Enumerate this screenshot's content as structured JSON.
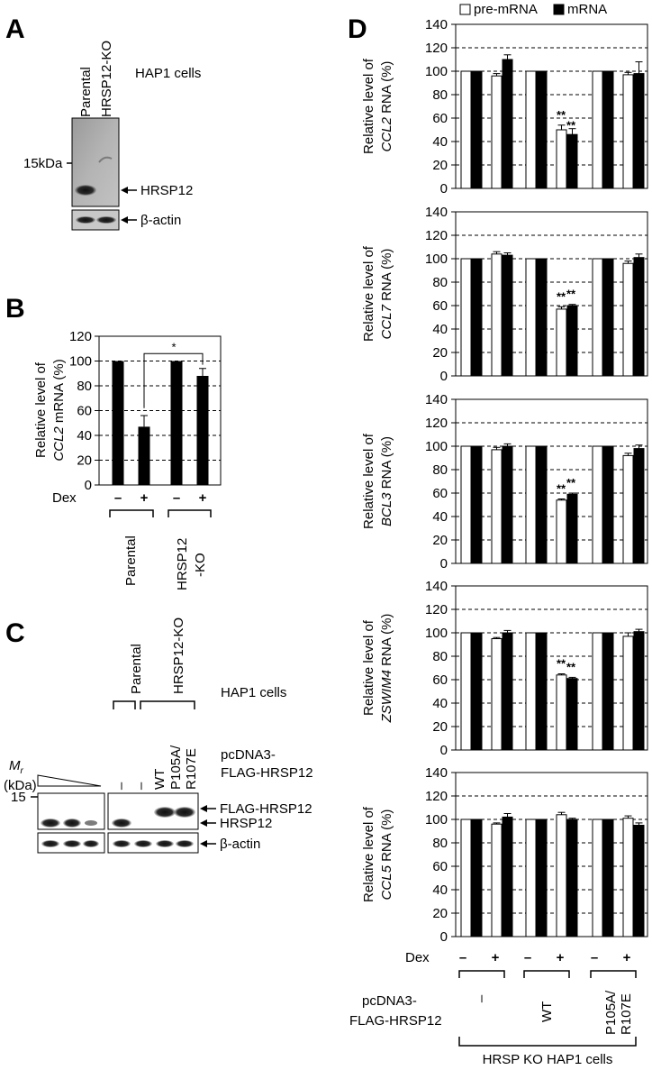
{
  "panels": {
    "a": "A",
    "b": "B",
    "c": "C",
    "d": "D"
  },
  "panel_a": {
    "cell_line": "HAP1 cells",
    "lanes": [
      "Parental",
      "HRSP12-KO"
    ],
    "marker": "15kDa",
    "bands": [
      "HRSP12",
      "β-actin"
    ]
  },
  "panel_c": {
    "cell_line": "HAP1 cells",
    "groups": [
      "Parental",
      "HRSP12-KO"
    ],
    "mr_label": "M",
    "mr_sub": "r",
    "mr_unit": "(kDa)",
    "mr_value": "15",
    "construct_line1": "pcDNA3-",
    "construct_line2": "FLAG-HRSP12",
    "lanes": [
      "–",
      "–",
      "WT",
      "P105A/\nR107E"
    ],
    "lane_dash": "–",
    "lane_wt": "WT",
    "lane_mut1": "P105A/",
    "lane_mut2": "R107E",
    "bands": [
      "FLAG-HRSP12",
      "HRSP12",
      "β-actin"
    ]
  },
  "panel_d_footer": {
    "dex_label": "Dex",
    "dex": [
      "–",
      "+",
      "–",
      "+",
      "–",
      "+"
    ],
    "construct_line1": "pcDNA3-",
    "construct_line2": "FLAG-HRSP12",
    "groups": [
      "–",
      "WT",
      "P105A/\nR107E"
    ],
    "group_dash": "–",
    "group_wt": "WT",
    "group_mut1": "P105A/",
    "group_mut2": "R107E",
    "cells": "HRSP KO HAP1 cells"
  },
  "chart_data": [
    {
      "type": "bar",
      "id": "B",
      "ylabel_line1": "Relative level of",
      "ylabel_gene": "CCL2",
      "ylabel_rest": " mRNA (%)",
      "yticks": [
        0,
        20,
        40,
        60,
        80,
        100,
        120
      ],
      "ylim": [
        0,
        120
      ],
      "grid": "dashed",
      "dex_label": "Dex",
      "dex": [
        "–",
        "+",
        "–",
        "+"
      ],
      "groups": [
        "Parental",
        "HRSP12\n-KO"
      ],
      "group_1": "Parental",
      "group_2a": "HRSP12",
      "group_2b": "-KO",
      "values": [
        100,
        47,
        100,
        88
      ],
      "errors": [
        0,
        9,
        0,
        6
      ],
      "significance": "*"
    },
    {
      "type": "bar",
      "id": "D1",
      "ylabel_line1": "Relative level of",
      "ylabel_gene": "CCL2",
      "ylabel_rest": " RNA (%)",
      "yticks": [
        0,
        20,
        40,
        60,
        80,
        100,
        120,
        140
      ],
      "ylim": [
        0,
        140
      ],
      "legend": [
        "pre-mRNA",
        "mRNA"
      ],
      "series": [
        {
          "name": "pre-mRNA",
          "values": [
            100,
            96,
            100,
            50,
            100,
            97
          ],
          "errors": [
            0,
            2,
            0,
            4,
            0,
            2
          ]
        },
        {
          "name": "mRNA",
          "values": [
            100,
            110,
            100,
            46,
            100,
            98
          ],
          "errors": [
            0,
            4,
            0,
            5,
            0,
            10
          ]
        }
      ],
      "stars": "**"
    },
    {
      "type": "bar",
      "id": "D2",
      "ylabel_line1": "Relative level of",
      "ylabel_gene": "CCL7",
      "ylabel_rest": " RNA (%)",
      "yticks": [
        0,
        20,
        40,
        60,
        80,
        100,
        120,
        140
      ],
      "ylim": [
        0,
        140
      ],
      "series": [
        {
          "name": "pre-mRNA",
          "values": [
            100,
            104,
            100,
            57,
            100,
            96
          ],
          "errors": [
            0,
            2,
            0,
            2,
            0,
            2
          ]
        },
        {
          "name": "mRNA",
          "values": [
            100,
            103,
            100,
            60,
            100,
            101
          ],
          "errors": [
            0,
            2,
            0,
            1,
            0,
            3
          ]
        }
      ],
      "stars": "**"
    },
    {
      "type": "bar",
      "id": "D3",
      "ylabel_line1": "Relative level of",
      "ylabel_gene": "BCL3",
      "ylabel_rest": " RNA (%)",
      "yticks": [
        0,
        20,
        40,
        60,
        80,
        100,
        120,
        140
      ],
      "ylim": [
        0,
        140
      ],
      "series": [
        {
          "name": "pre-mRNA",
          "values": [
            100,
            97,
            100,
            54,
            100,
            92
          ],
          "errors": [
            0,
            2,
            0,
            1,
            0,
            2
          ]
        },
        {
          "name": "mRNA",
          "values": [
            100,
            100,
            100,
            59,
            100,
            98
          ],
          "errors": [
            0,
            2,
            0,
            1,
            0,
            3
          ]
        }
      ],
      "stars": "**"
    },
    {
      "type": "bar",
      "id": "D4",
      "ylabel_line1": "Relative level of",
      "ylabel_gene": "ZSWIM4",
      "ylabel_rest": " RNA (%)",
      "yticks": [
        0,
        20,
        40,
        60,
        80,
        100,
        120,
        140
      ],
      "ylim": [
        0,
        140
      ],
      "series": [
        {
          "name": "pre-mRNA",
          "values": [
            100,
            95,
            100,
            64,
            100,
            97
          ],
          "errors": [
            0,
            1,
            0,
            1,
            0,
            3
          ]
        },
        {
          "name": "mRNA",
          "values": [
            100,
            100,
            100,
            61,
            100,
            101
          ],
          "errors": [
            0,
            2,
            0,
            1,
            0,
            2
          ]
        }
      ],
      "stars": "**"
    },
    {
      "type": "bar",
      "id": "D5",
      "ylabel_line1": "Relative level of",
      "ylabel_gene": "CCL5",
      "ylabel_rest": " RNA (%)",
      "yticks": [
        0,
        20,
        40,
        60,
        80,
        100,
        120,
        140
      ],
      "ylim": [
        0,
        140
      ],
      "series": [
        {
          "name": "pre-mRNA",
          "values": [
            100,
            96,
            100,
            104,
            100,
            101
          ],
          "errors": [
            0,
            1,
            0,
            2,
            0,
            2
          ]
        },
        {
          "name": "mRNA",
          "values": [
            100,
            102,
            100,
            100,
            100,
            95
          ],
          "errors": [
            0,
            3,
            0,
            1,
            0,
            2
          ]
        }
      ],
      "stars": ""
    }
  ]
}
